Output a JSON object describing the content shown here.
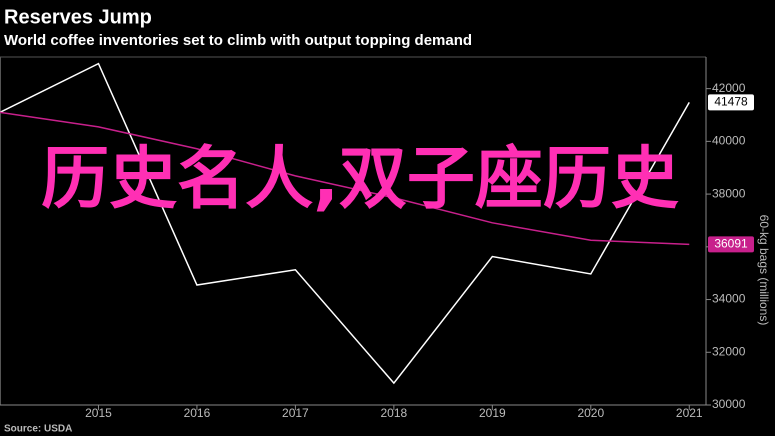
{
  "chart_data": {
    "type": "line",
    "title": "Reserves Jump",
    "subtitle": "World coffee inventories set to climb with output topping demand",
    "source": "Source: USDA",
    "y_label": "60-kg bags (millions)",
    "annotation": "历史名人,双子座历史",
    "x": [
      2014,
      2015,
      2016,
      2017,
      2018,
      2019,
      2020,
      2021
    ],
    "xlim": [
      2014,
      2021.17
    ],
    "xticks": [
      2015,
      2016,
      2017,
      2018,
      2019,
      2020,
      2021
    ],
    "ylim": [
      30000,
      43200
    ],
    "yticks": [
      30000,
      32000,
      34000,
      36000,
      38000,
      40000,
      42000
    ],
    "series": [
      {
        "color": "#ffffff",
        "values": [
          41100,
          42950,
          34550,
          35130,
          30830,
          35630,
          34970,
          41478
        ]
      },
      {
        "color": "#c8208c",
        "values": [
          41100,
          40550,
          39720,
          38690,
          37860,
          36910,
          36250,
          36091
        ]
      }
    ]
  }
}
